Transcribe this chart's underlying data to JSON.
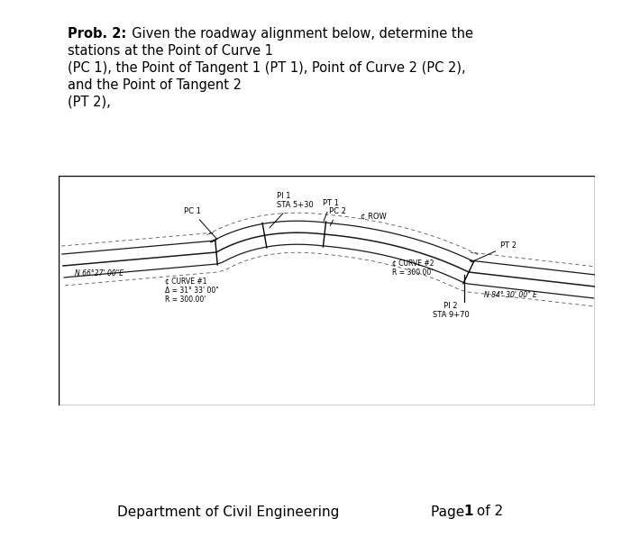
{
  "title_bold": "Prob. 2:",
  "title_rest": "  Given the roadway alignment below, determine the",
  "title_line2": "stations at the Point of Curve 1",
  "title_line3": "(PC 1), the Point of Tangent 1 (PT 1), Point of Curve 2 (PC 2),",
  "title_line4": "and the Point of Tangent 2",
  "title_line5": "(PT 2),",
  "footer_left": "Department of Civil Engineering",
  "footer_right": "Page ",
  "footer_bold": "1",
  "footer_end": " of 2",
  "bg_color": "#ffffff",
  "diagram": {
    "bearing1": "N 66°27' 00\"E",
    "bearing2": "N 84° 30' 00\" E",
    "pi1_label": "PI 1",
    "pi1_sta": "STA 5+30",
    "pi2_label": "PI 2",
    "pi2_sta": "STA 9+70",
    "pc1_label": "PC 1",
    "pt1_label": "PT 1",
    "pc2_label": "PC 2",
    "pt2_label": "PT 2",
    "row_label": "¢ ROW",
    "curve1_label": "¢ CURVE #1",
    "curve1_delta": "Δ = 31° 33' 00\"",
    "curve1_r": "R = 300.00'",
    "curve2_label": "¢ CURVE #2",
    "curve2_r": "R = 300.00'"
  }
}
